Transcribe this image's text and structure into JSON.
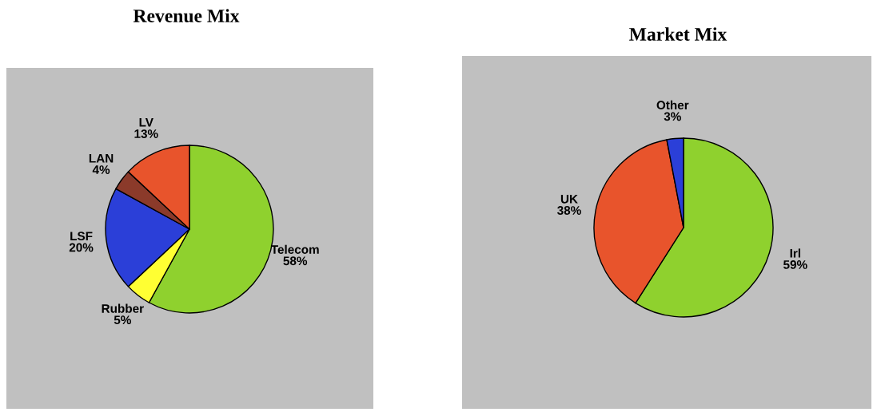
{
  "chart_data": [
    {
      "type": "pie",
      "title": "Revenue Mix",
      "categories": [
        "Telecom",
        "Rubber",
        "LSF",
        "LAN",
        "LV"
      ],
      "values": [
        58,
        5,
        20,
        4,
        13
      ],
      "value_labels": [
        "58%",
        "5%",
        "20%",
        "4%",
        "13%"
      ],
      "colors": [
        "#8fd12e",
        "#ffff33",
        "#2b3fd8",
        "#8b3a2a",
        "#e8542c"
      ],
      "legend": false
    },
    {
      "type": "pie",
      "title": "Market Mix",
      "categories": [
        "Irl",
        "UK",
        "Other"
      ],
      "values": [
        59,
        38,
        3
      ],
      "value_labels": [
        "59%",
        "38%",
        "3%"
      ],
      "colors": [
        "#8fd12e",
        "#e8542c",
        "#2b3fd8"
      ],
      "legend": false
    }
  ]
}
